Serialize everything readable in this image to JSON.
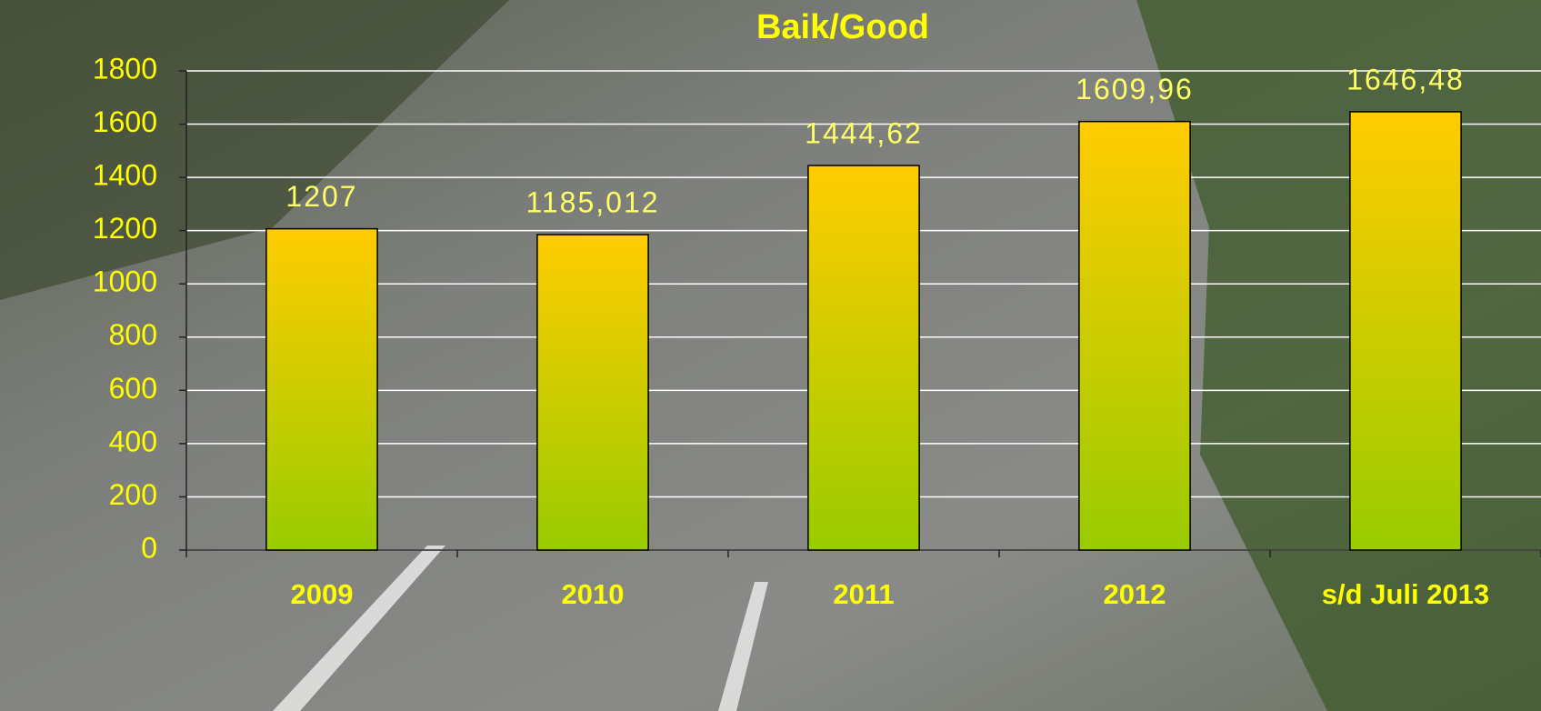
{
  "chart_data": {
    "type": "bar",
    "title": "Baik/Good",
    "categories": [
      "2009",
      "2010",
      "2011",
      "2012",
      "s/d Juli 2013"
    ],
    "values": [
      1207,
      1185.012,
      1444.62,
      1609.96,
      1646.48
    ],
    "value_labels": [
      "1207",
      "1185,012",
      "1444,62",
      "1609,96",
      "1646,48"
    ],
    "colors": [
      "#ffcc00",
      "#99cc00"
    ],
    "ylim": [
      0,
      1800
    ],
    "yticks": [
      0,
      200,
      400,
      600,
      800,
      1000,
      1200,
      1400,
      1600,
      1800
    ],
    "grid": true
  }
}
